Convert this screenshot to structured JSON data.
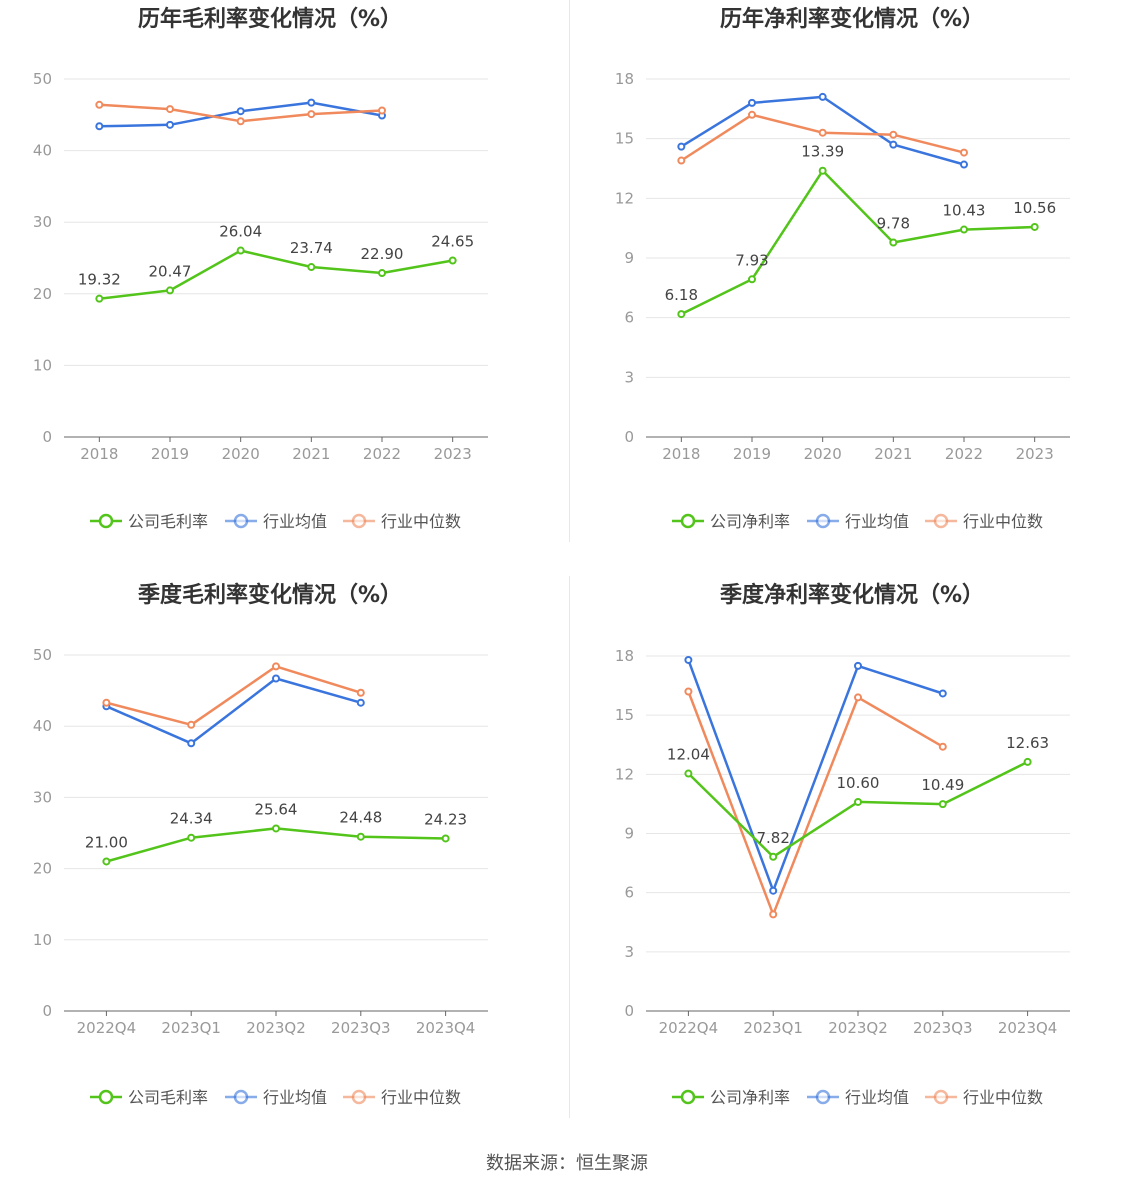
{
  "source_text": "数据来源：恒生聚源",
  "legend_markers": {
    "company_color": "#52c41a",
    "avg_color": "#3a75dd",
    "median_color": "#f08a5d"
  },
  "chart_data": [
    {
      "type": "line",
      "title": "历年毛利率变化情况（%）",
      "categories": [
        "2018",
        "2019",
        "2020",
        "2021",
        "2022",
        "2023"
      ],
      "ylim": [
        0,
        50
      ],
      "yticks": [
        0,
        10,
        20,
        30,
        40,
        50
      ],
      "series": [
        {
          "name": "公司毛利率",
          "color": "#52c41a",
          "values": [
            19.32,
            20.47,
            26.04,
            23.74,
            22.9,
            24.65
          ],
          "labels": [
            "19.32",
            "20.47",
            "26.04",
            "23.74",
            "22.90",
            "24.65"
          ]
        },
        {
          "name": "行业均值",
          "color": "#3a75dd",
          "values": [
            43.4,
            43.6,
            45.5,
            46.7,
            44.9,
            null
          ]
        },
        {
          "name": "行业中位数",
          "color": "#f08a5d",
          "values": [
            46.4,
            45.8,
            44.1,
            45.1,
            45.6,
            null
          ]
        }
      ]
    },
    {
      "type": "line",
      "title": "历年净利率变化情况（%）",
      "categories": [
        "2018",
        "2019",
        "2020",
        "2021",
        "2022",
        "2023"
      ],
      "ylim": [
        0,
        18
      ],
      "yticks": [
        0,
        3,
        6,
        9,
        12,
        15,
        18
      ],
      "series": [
        {
          "name": "公司净利率",
          "color": "#52c41a",
          "values": [
            6.18,
            7.93,
            13.39,
            9.78,
            10.43,
            10.56
          ],
          "labels": [
            "6.18",
            "7.93",
            "13.39",
            "9.78",
            "10.43",
            "10.56"
          ]
        },
        {
          "name": "行业均值",
          "color": "#3a75dd",
          "values": [
            14.6,
            16.8,
            17.1,
            14.7,
            13.7,
            null
          ]
        },
        {
          "name": "行业中位数",
          "color": "#f08a5d",
          "values": [
            13.9,
            16.2,
            15.3,
            15.2,
            14.3,
            null
          ]
        }
      ]
    },
    {
      "type": "line",
      "title": "季度毛利率变化情况（%）",
      "categories": [
        "2022Q4",
        "2023Q1",
        "2023Q2",
        "2023Q3",
        "2023Q4"
      ],
      "ylim": [
        0,
        50
      ],
      "yticks": [
        0,
        10,
        20,
        30,
        40,
        50
      ],
      "series": [
        {
          "name": "公司毛利率",
          "color": "#52c41a",
          "values": [
            21.0,
            24.34,
            25.64,
            24.48,
            24.23
          ],
          "labels": [
            "21.00",
            "24.34",
            "25.64",
            "24.48",
            "24.23"
          ]
        },
        {
          "name": "行业均值",
          "color": "#3a75dd",
          "values": [
            42.8,
            37.6,
            46.7,
            43.3,
            null
          ]
        },
        {
          "name": "行业中位数",
          "color": "#f08a5d",
          "values": [
            43.3,
            40.2,
            48.4,
            44.7,
            null
          ]
        }
      ]
    },
    {
      "type": "line",
      "title": "季度净利率变化情况（%）",
      "categories": [
        "2022Q4",
        "2023Q1",
        "2023Q2",
        "2023Q3",
        "2023Q4"
      ],
      "ylim": [
        0,
        18
      ],
      "yticks": [
        0,
        3,
        6,
        9,
        12,
        15,
        18
      ],
      "series": [
        {
          "name": "公司净利率",
          "color": "#52c41a",
          "values": [
            12.04,
            7.82,
            10.6,
            10.49,
            12.63
          ],
          "labels": [
            "12.04",
            "7.82",
            "10.60",
            "10.49",
            "12.63"
          ]
        },
        {
          "name": "行业均值",
          "color": "#3a75dd",
          "values": [
            17.8,
            6.1,
            17.5,
            16.1,
            null
          ]
        },
        {
          "name": "行业中位数",
          "color": "#f08a5d",
          "values": [
            16.2,
            4.9,
            15.9,
            13.4,
            null
          ]
        }
      ]
    }
  ]
}
